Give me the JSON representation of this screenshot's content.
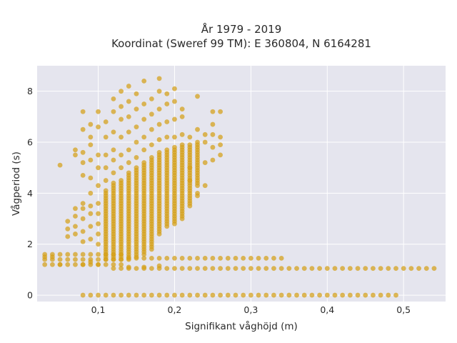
{
  "chart_data": {
    "type": "scatter",
    "title_lines": [
      "År 1979 - 2019",
      "Koordinat (Sweref 99 TM): E 360804, N 6164281"
    ],
    "xlabel": "Signifikant våghöjd (m)",
    "ylabel": "Vågperiod (s)",
    "xlim": [
      0.02,
      0.555
    ],
    "ylim": [
      -0.25,
      9.0
    ],
    "x_ticks": [
      0.1,
      0.2,
      0.3,
      0.4,
      0.5
    ],
    "x_tick_labels": [
      "0,1",
      "0,2",
      "0,3",
      "0,4",
      "0,5"
    ],
    "y_ticks": [
      0,
      2,
      4,
      6,
      8
    ],
    "y_tick_labels": [
      "0",
      "2",
      "4",
      "6",
      "8"
    ],
    "grid": true,
    "legend": "none",
    "marker_color": "#D4A017",
    "background_color": "#E5E5EE",
    "grid_color": "#FFFFFF",
    "x_step": 0.01,
    "point_groups": [
      {
        "y": 0,
        "x_from": 0.08,
        "x_to": 0.49
      },
      {
        "y": 1.05,
        "x_from": 0.12,
        "x_to": 0.54
      },
      {
        "y": 1.45,
        "x_from": 0.14,
        "x_to": 0.34
      },
      {
        "y_from": 1.2,
        "y_to": 1.6,
        "y_step": 0.2,
        "x_from": 0.03,
        "x_to": 0.13
      },
      {
        "x": 0.11,
        "y_from": 1.4,
        "y_to": 4.1
      },
      {
        "x": 0.12,
        "y_from": 1.4,
        "y_to": 4.4
      },
      {
        "x": 0.13,
        "y_from": 1.4,
        "y_to": 4.5
      },
      {
        "x": 0.14,
        "y_from": 1.4,
        "y_to": 4.8
      },
      {
        "x": 0.15,
        "y_from": 1.5,
        "y_to": 5.0
      },
      {
        "x": 0.16,
        "y_from": 1.6,
        "y_to": 5.2
      },
      {
        "x": 0.17,
        "y_from": 1.8,
        "y_to": 5.4
      },
      {
        "x": 0.18,
        "y_from": 2.4,
        "y_to": 5.6
      },
      {
        "x": 0.19,
        "y_from": 2.7,
        "y_to": 5.7
      },
      {
        "x": 0.2,
        "y_from": 2.8,
        "y_to": 5.8
      },
      {
        "x": 0.21,
        "y_from": 3.0,
        "y_to": 5.9
      },
      {
        "x": 0.22,
        "y_from": 3.5,
        "y_to": 5.9
      },
      {
        "x": 0.23,
        "y_from": 4.3,
        "y_to": 6.0
      }
    ],
    "scatter_points": [
      [
        0.1,
        3.6
      ],
      [
        0.1,
        3.2
      ],
      [
        0.1,
        2.8
      ],
      [
        0.1,
        2.4
      ],
      [
        0.1,
        2.0
      ],
      [
        0.1,
        4.3
      ],
      [
        0.1,
        5.0
      ],
      [
        0.1,
        5.5
      ],
      [
        0.1,
        6.6
      ],
      [
        0.1,
        7.2
      ],
      [
        0.09,
        3.2
      ],
      [
        0.09,
        3.5
      ],
      [
        0.09,
        2.7
      ],
      [
        0.09,
        2.2
      ],
      [
        0.09,
        4.0
      ],
      [
        0.09,
        4.6
      ],
      [
        0.09,
        5.3
      ],
      [
        0.09,
        5.9
      ],
      [
        0.09,
        6.2
      ],
      [
        0.09,
        6.7
      ],
      [
        0.08,
        3.0
      ],
      [
        0.08,
        3.4
      ],
      [
        0.08,
        3.6
      ],
      [
        0.08,
        2.5
      ],
      [
        0.08,
        2.1
      ],
      [
        0.08,
        4.7
      ],
      [
        0.08,
        5.2
      ],
      [
        0.08,
        5.6
      ],
      [
        0.08,
        6.5
      ],
      [
        0.08,
        7.2
      ],
      [
        0.07,
        2.7
      ],
      [
        0.07,
        3.1
      ],
      [
        0.07,
        3.4
      ],
      [
        0.07,
        2.4
      ],
      [
        0.07,
        5.5
      ],
      [
        0.07,
        5.7
      ],
      [
        0.06,
        2.6
      ],
      [
        0.06,
        2.9
      ],
      [
        0.06,
        2.3
      ],
      [
        0.05,
        5.1
      ],
      [
        0.1,
        1.2
      ],
      [
        0.09,
        1.3
      ],
      [
        0.08,
        1.2
      ],
      [
        0.05,
        1.2
      ],
      [
        0.11,
        4.5
      ],
      [
        0.11,
        5.0
      ],
      [
        0.11,
        5.5
      ],
      [
        0.11,
        6.2
      ],
      [
        0.11,
        6.8
      ],
      [
        0.12,
        4.8
      ],
      [
        0.12,
        5.3
      ],
      [
        0.12,
        5.7
      ],
      [
        0.12,
        6.4
      ],
      [
        0.12,
        7.2
      ],
      [
        0.12,
        7.7
      ],
      [
        0.13,
        5.0
      ],
      [
        0.13,
        5.5
      ],
      [
        0.13,
        6.2
      ],
      [
        0.13,
        6.9
      ],
      [
        0.13,
        7.4
      ],
      [
        0.13,
        8.0
      ],
      [
        0.14,
        5.2
      ],
      [
        0.14,
        5.7
      ],
      [
        0.14,
        6.4
      ],
      [
        0.14,
        7.0
      ],
      [
        0.14,
        7.6
      ],
      [
        0.14,
        8.2
      ],
      [
        0.15,
        5.4
      ],
      [
        0.15,
        6.0
      ],
      [
        0.15,
        6.6
      ],
      [
        0.15,
        7.3
      ],
      [
        0.15,
        7.9
      ],
      [
        0.16,
        5.7
      ],
      [
        0.16,
        6.2
      ],
      [
        0.16,
        6.9
      ],
      [
        0.16,
        7.5
      ],
      [
        0.16,
        8.4
      ],
      [
        0.17,
        5.9
      ],
      [
        0.17,
        6.5
      ],
      [
        0.17,
        7.1
      ],
      [
        0.17,
        7.7
      ],
      [
        0.18,
        6.1
      ],
      [
        0.18,
        6.7
      ],
      [
        0.18,
        7.3
      ],
      [
        0.18,
        8.0
      ],
      [
        0.18,
        8.5
      ],
      [
        0.19,
        6.2
      ],
      [
        0.19,
        6.8
      ],
      [
        0.19,
        7.5
      ],
      [
        0.19,
        7.9
      ],
      [
        0.2,
        6.2
      ],
      [
        0.2,
        6.9
      ],
      [
        0.2,
        7.6
      ],
      [
        0.2,
        8.1
      ],
      [
        0.21,
        6.3
      ],
      [
        0.21,
        7.0
      ],
      [
        0.21,
        7.3
      ],
      [
        0.22,
        6.2
      ],
      [
        0.22,
        5.0
      ],
      [
        0.22,
        4.5
      ],
      [
        0.23,
        6.5
      ],
      [
        0.23,
        7.8
      ],
      [
        0.23,
        4.0
      ],
      [
        0.23,
        3.9
      ],
      [
        0.24,
        6.0
      ],
      [
        0.24,
        5.2
      ],
      [
        0.24,
        4.3
      ],
      [
        0.24,
        6.3
      ],
      [
        0.25,
        6.3
      ],
      [
        0.25,
        6.7
      ],
      [
        0.25,
        7.2
      ],
      [
        0.25,
        5.8
      ],
      [
        0.25,
        5.3
      ],
      [
        0.26,
        6.2
      ],
      [
        0.26,
        7.2
      ],
      [
        0.26,
        5.9
      ],
      [
        0.26,
        5.5
      ],
      [
        0.14,
        1.1
      ],
      [
        0.16,
        1.1
      ],
      [
        0.18,
        1.15
      ],
      [
        0.03,
        1.5
      ],
      [
        0.04,
        1.5
      ]
    ]
  }
}
